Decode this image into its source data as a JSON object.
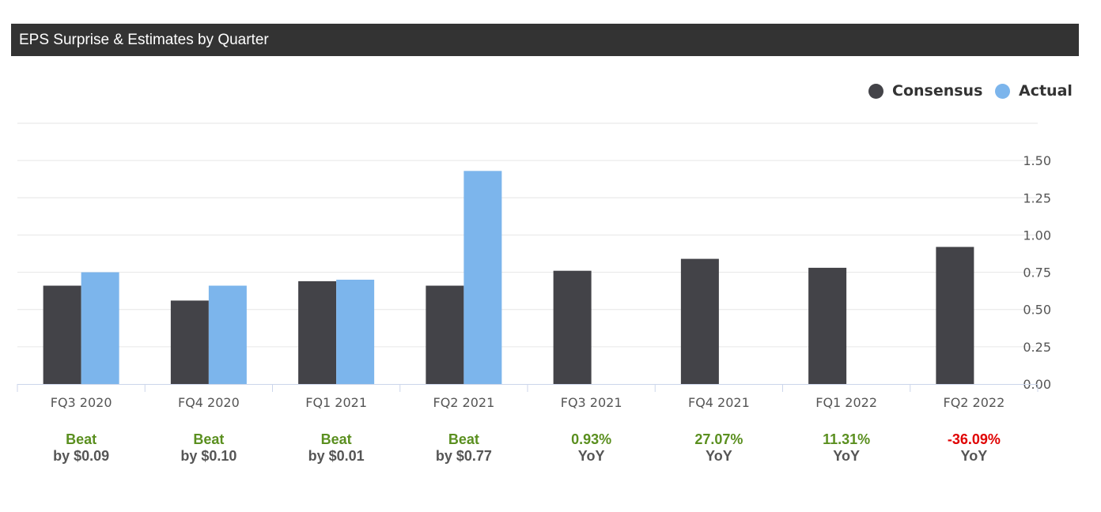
{
  "header": {
    "title": "EPS Surprise & Estimates by Quarter"
  },
  "legend": [
    {
      "label": "Consensus",
      "color": "#434348"
    },
    {
      "label": "Actual",
      "color": "#7cb5ec"
    }
  ],
  "chart_data": {
    "type": "bar",
    "categories": [
      "FQ3 2020",
      "FQ4 2020",
      "FQ1 2021",
      "FQ2 2021",
      "FQ3 2021",
      "FQ4 2021",
      "FQ1 2022",
      "FQ2 2022"
    ],
    "series": [
      {
        "name": "Consensus",
        "color": "#434348",
        "values": [
          0.66,
          0.56,
          0.69,
          0.66,
          0.76,
          0.84,
          0.78,
          0.92
        ]
      },
      {
        "name": "Actual",
        "color": "#7cb5ec",
        "values": [
          0.75,
          0.66,
          0.7,
          1.43,
          null,
          null,
          null,
          null
        ]
      }
    ],
    "yticks": [
      "0.00",
      "0.25",
      "0.50",
      "0.75",
      "1.00",
      "1.25",
      "1.50"
    ],
    "ylim": [
      0,
      1.75
    ],
    "grid": true,
    "y_axis_side": "right",
    "legend_position": "top-right"
  },
  "summaries": [
    {
      "top": "Beat",
      "bottom": "by $0.09",
      "top_color": "#5a8f1f"
    },
    {
      "top": "Beat",
      "bottom": "by $0.10",
      "top_color": "#5a8f1f"
    },
    {
      "top": "Beat",
      "bottom": "by $0.01",
      "top_color": "#5a8f1f"
    },
    {
      "top": "Beat",
      "bottom": "by $0.77",
      "top_color": "#5a8f1f"
    },
    {
      "top": "0.93%",
      "bottom": "YoY",
      "top_color": "#5a8f1f"
    },
    {
      "top": "27.07%",
      "bottom": "YoY",
      "top_color": "#5a8f1f"
    },
    {
      "top": "11.31%",
      "bottom": "YoY",
      "top_color": "#5a8f1f"
    },
    {
      "top": "-36.09%",
      "bottom": "YoY",
      "top_color": "#e00000"
    }
  ]
}
